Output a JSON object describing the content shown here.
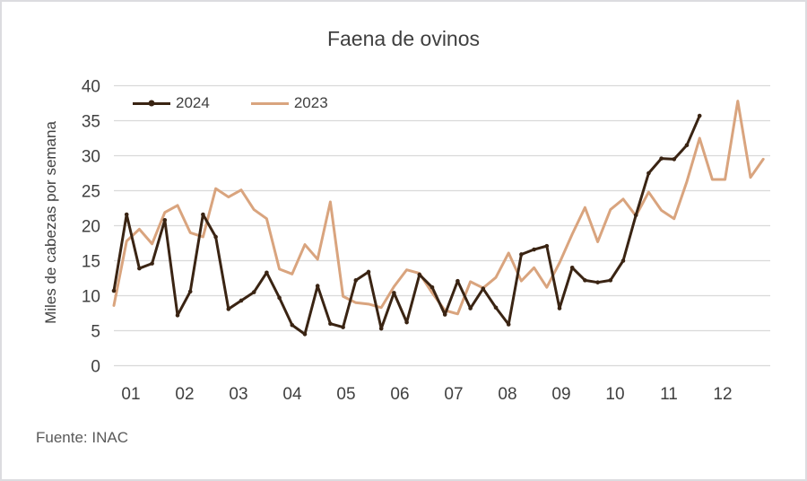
{
  "chart_data": {
    "type": "line",
    "title": "Faena de ovinos",
    "ylabel": "Miles de cabezas por semana",
    "source": "Fuente: INAC",
    "grid": true,
    "legend_position": "top-left-inside",
    "x_axis": {
      "unit": "month-of-year",
      "tick_labels": [
        "01",
        "02",
        "03",
        "04",
        "05",
        "06",
        "07",
        "08",
        "09",
        "10",
        "11",
        "12"
      ],
      "points_are": "weeks (52 per year)"
    },
    "y_axis": {
      "min": 0,
      "max": 40,
      "step": 5,
      "tick_labels": [
        "0",
        "5",
        "10",
        "15",
        "20",
        "25",
        "30",
        "35",
        "40"
      ]
    },
    "series": [
      {
        "name": "2023",
        "color": "#D9A47E",
        "marker": false,
        "values": [
          8.6,
          17.8,
          19.5,
          17.4,
          21.9,
          22.9,
          19.0,
          18.4,
          25.3,
          24.1,
          25.1,
          22.3,
          21.0,
          13.8,
          13.1,
          17.3,
          15.2,
          23.4,
          9.9,
          9.0,
          8.8,
          8.3,
          11.3,
          13.7,
          13.2,
          10.4,
          7.9,
          7.4,
          12.0,
          11.1,
          12.6,
          16.1,
          12.1,
          14.0,
          11.2,
          14.7,
          18.8,
          22.6,
          17.7,
          22.3,
          23.8,
          21.4,
          24.8,
          22.2,
          21.0,
          26.3,
          32.5,
          26.6,
          26.6,
          37.8,
          26.9,
          29.5
        ]
      },
      {
        "name": "2024",
        "color": "#3A2413",
        "marker": true,
        "values": [
          10.7,
          21.6,
          13.9,
          14.6,
          20.8,
          7.2,
          10.6,
          21.6,
          18.4,
          8.1,
          9.3,
          10.5,
          13.3,
          9.7,
          5.8,
          4.5,
          11.4,
          6.0,
          5.5,
          12.2,
          13.4,
          5.3,
          10.4,
          6.2,
          13.0,
          11.2,
          7.3,
          12.1,
          8.2,
          11.0,
          8.3,
          5.9,
          15.9,
          16.6,
          17.1,
          8.2,
          14.0,
          12.2,
          11.9,
          12.2,
          15.0,
          21.5,
          27.5,
          29.6,
          29.5,
          31.5,
          35.7
        ]
      }
    ],
    "colors": {
      "gridline": "#D9D9D9",
      "axis_text": "#404040",
      "title_text": "#3F3F3F",
      "source_text": "#595959"
    }
  }
}
